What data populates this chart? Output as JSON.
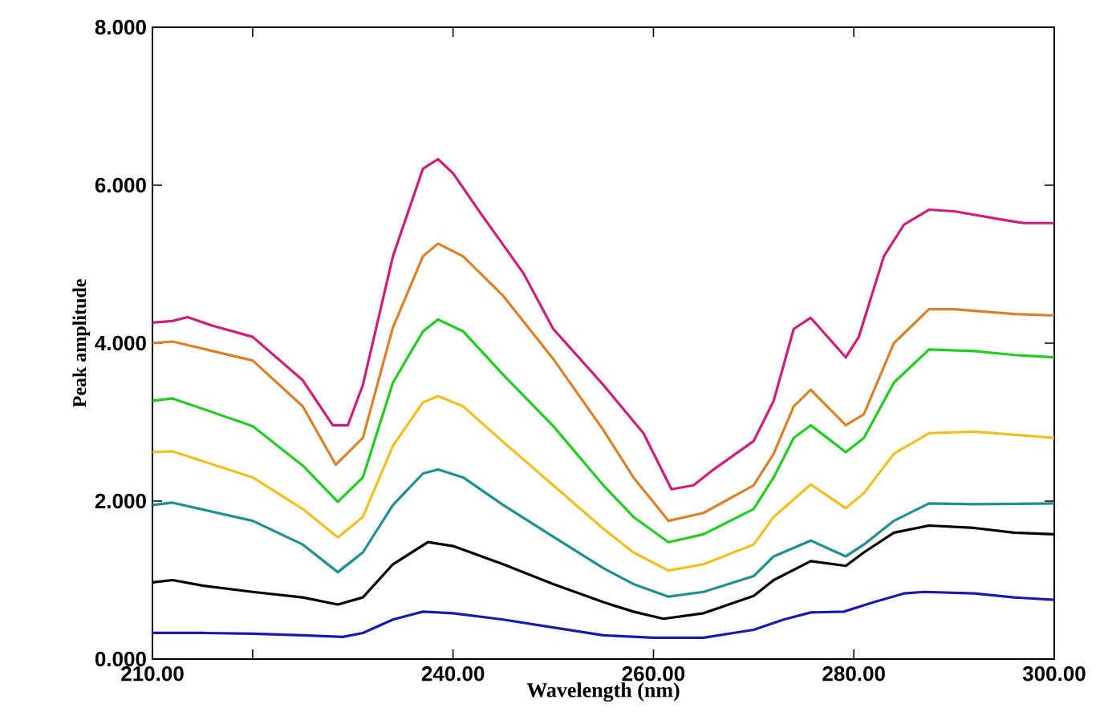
{
  "chart_data": {
    "type": "line",
    "xlabel": "Wavelength (nm)",
    "ylabel": "Peak amplitude",
    "xlim": [
      210,
      300
    ],
    "ylim": [
      0,
      8
    ],
    "xticks": [
      {
        "value": 210,
        "label": "210.00"
      },
      {
        "value": 220,
        "label": null
      },
      {
        "value": 240,
        "label": "240.00"
      },
      {
        "value": 260,
        "label": "260.00"
      },
      {
        "value": 280,
        "label": "280.00"
      },
      {
        "value": 300,
        "label": "300.00"
      }
    ],
    "yticks": [
      {
        "value": 0,
        "label": "0.000"
      },
      {
        "value": 2,
        "label": "2.000"
      },
      {
        "value": 4,
        "label": "4.000"
      },
      {
        "value": 6,
        "label": "6.000"
      },
      {
        "value": 8,
        "label": "8.000"
      }
    ],
    "series": [
      {
        "color": "#cc1f7a",
        "x": [
          210,
          212,
          213.5,
          216,
          220,
          225,
          228,
          229.5,
          231,
          234,
          237,
          238.5,
          240,
          243,
          247,
          250,
          255,
          259,
          261.8,
          264,
          266,
          270,
          272,
          274,
          275.7,
          279.2,
          280.5,
          283,
          285,
          287.5,
          290,
          295,
          297,
          300
        ],
        "values": [
          4.26,
          4.28,
          4.33,
          4.22,
          4.08,
          3.53,
          2.96,
          2.96,
          3.47,
          5.1,
          6.21,
          6.33,
          6.15,
          5.6,
          4.89,
          4.18,
          3.47,
          2.86,
          2.15,
          2.2,
          2.4,
          2.76,
          3.27,
          4.18,
          4.32,
          3.82,
          4.08,
          5.1,
          5.5,
          5.69,
          5.67,
          5.56,
          5.52,
          5.52
        ]
      },
      {
        "color": "#d9822b",
        "x": [
          210,
          212,
          220,
          225,
          228.3,
          231,
          234,
          237,
          238.5,
          241,
          245,
          250,
          255,
          258,
          261.5,
          265,
          270,
          272,
          274,
          275.7,
          279.2,
          281,
          284,
          287.5,
          290,
          293,
          296,
          300
        ],
        "values": [
          4.0,
          4.02,
          3.78,
          3.2,
          2.46,
          2.8,
          4.2,
          5.1,
          5.26,
          5.1,
          4.6,
          3.8,
          2.9,
          2.3,
          1.75,
          1.85,
          2.2,
          2.6,
          3.2,
          3.41,
          2.96,
          3.1,
          4.0,
          4.43,
          4.43,
          4.4,
          4.37,
          4.35
        ]
      },
      {
        "color": "#22cc22",
        "x": [
          210,
          212,
          220,
          225,
          228.5,
          231,
          234,
          237,
          238.5,
          241,
          245,
          250,
          255,
          258,
          261.5,
          265,
          270,
          272,
          274,
          275.7,
          279.2,
          281,
          284,
          287.5,
          292,
          296,
          300
        ],
        "values": [
          3.27,
          3.3,
          2.95,
          2.45,
          1.99,
          2.3,
          3.5,
          4.15,
          4.3,
          4.15,
          3.6,
          2.95,
          2.2,
          1.8,
          1.48,
          1.58,
          1.9,
          2.3,
          2.8,
          2.96,
          2.62,
          2.8,
          3.5,
          3.92,
          3.9,
          3.85,
          3.82
        ]
      },
      {
        "color": "#f0c020",
        "x": [
          210,
          212,
          220,
          225,
          228.5,
          231,
          234,
          237,
          238.5,
          241,
          245,
          250,
          255,
          258,
          261.5,
          265,
          270,
          272,
          275.7,
          279.2,
          281,
          284,
          287.5,
          292,
          300
        ],
        "values": [
          2.62,
          2.63,
          2.3,
          1.9,
          1.54,
          1.8,
          2.7,
          3.25,
          3.33,
          3.2,
          2.75,
          2.2,
          1.65,
          1.35,
          1.12,
          1.2,
          1.45,
          1.8,
          2.21,
          1.91,
          2.1,
          2.6,
          2.86,
          2.88,
          2.8
        ]
      },
      {
        "color": "#1f8f8f",
        "x": [
          210,
          212,
          220,
          225,
          228.5,
          231,
          234,
          237,
          238.5,
          241,
          245,
          250,
          255,
          258,
          261.5,
          265,
          270,
          272,
          275.7,
          279.2,
          281,
          284,
          287.5,
          292,
          300
        ],
        "values": [
          1.95,
          1.98,
          1.75,
          1.45,
          1.1,
          1.35,
          1.95,
          2.35,
          2.4,
          2.3,
          1.95,
          1.55,
          1.15,
          0.95,
          0.79,
          0.85,
          1.05,
          1.3,
          1.5,
          1.3,
          1.45,
          1.75,
          1.97,
          1.96,
          1.97
        ]
      },
      {
        "color": "#000000",
        "x": [
          210,
          212,
          215,
          220,
          225,
          228.5,
          231,
          234,
          237.5,
          240,
          245,
          250,
          255,
          258,
          261,
          265,
          270,
          272,
          275.7,
          279.2,
          281,
          284,
          287.5,
          292,
          296,
          300
        ],
        "values": [
          0.97,
          1.0,
          0.93,
          0.85,
          0.78,
          0.69,
          0.78,
          1.2,
          1.48,
          1.43,
          1.2,
          0.95,
          0.72,
          0.6,
          0.51,
          0.58,
          0.8,
          1.0,
          1.24,
          1.18,
          1.35,
          1.6,
          1.69,
          1.66,
          1.6,
          1.58
        ]
      },
      {
        "color": "#1a1aaa",
        "x": [
          210,
          215,
          220,
          225,
          229,
          231,
          234,
          237,
          240,
          245,
          250,
          255,
          260,
          265,
          270,
          273,
          275.7,
          279,
          282,
          285,
          287,
          292,
          296,
          300
        ],
        "values": [
          0.33,
          0.33,
          0.32,
          0.3,
          0.28,
          0.33,
          0.5,
          0.6,
          0.58,
          0.5,
          0.4,
          0.3,
          0.27,
          0.27,
          0.37,
          0.5,
          0.59,
          0.6,
          0.72,
          0.83,
          0.85,
          0.83,
          0.78,
          0.75
        ]
      }
    ]
  }
}
